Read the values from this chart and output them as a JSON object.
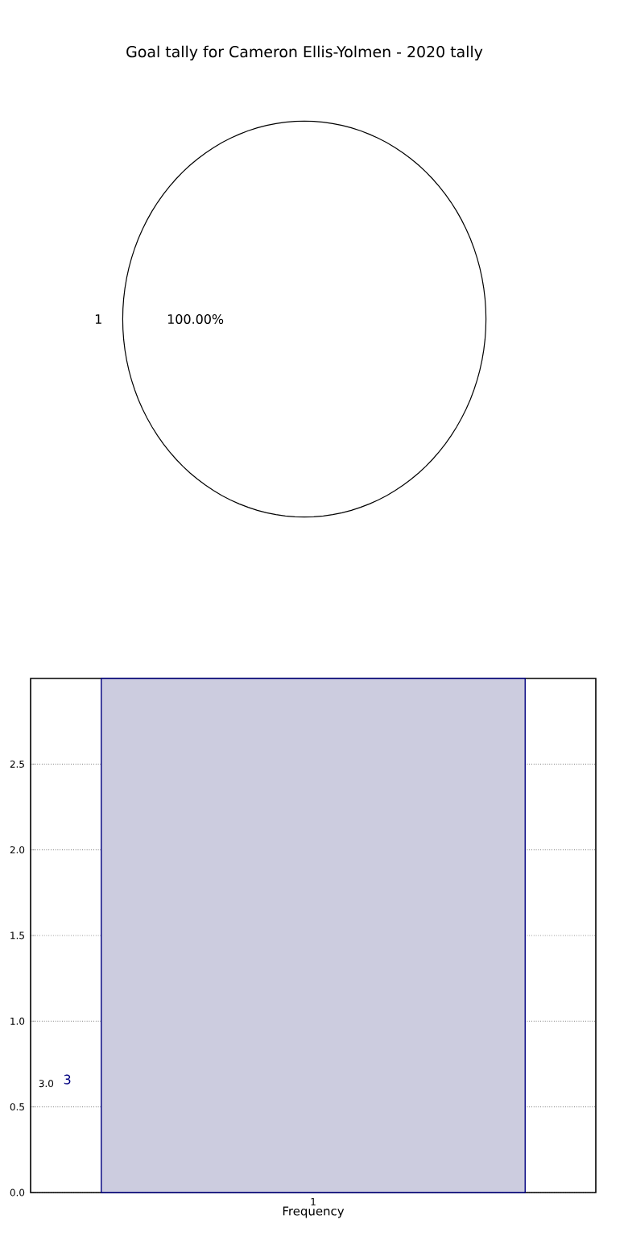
{
  "chart_data": [
    {
      "type": "pie",
      "title": "Goal tally for Cameron Ellis-Yolmen - 2020 tally",
      "categories": [
        "1"
      ],
      "values": [
        100
      ],
      "colors": [
        "#ffffff"
      ],
      "value_labels": [
        "100.00%"
      ]
    },
    {
      "type": "bar",
      "categories": [
        "1"
      ],
      "values": [
        3
      ],
      "color": "#ccccdf",
      "xlabel": "Frequency",
      "ylim": [
        0,
        3
      ],
      "yticks": [
        {
          "value": 0,
          "label": "0.0"
        },
        {
          "value": 0.5,
          "label": "0.5"
        },
        {
          "value": 1,
          "label": "1.0"
        },
        {
          "value": 1.5,
          "label": "1.5"
        },
        {
          "value": 2,
          "label": "2.0"
        },
        {
          "value": 2.5,
          "label": "2.5"
        }
      ],
      "grid": true,
      "annotations": [
        "3",
        "3.0"
      ]
    }
  ]
}
